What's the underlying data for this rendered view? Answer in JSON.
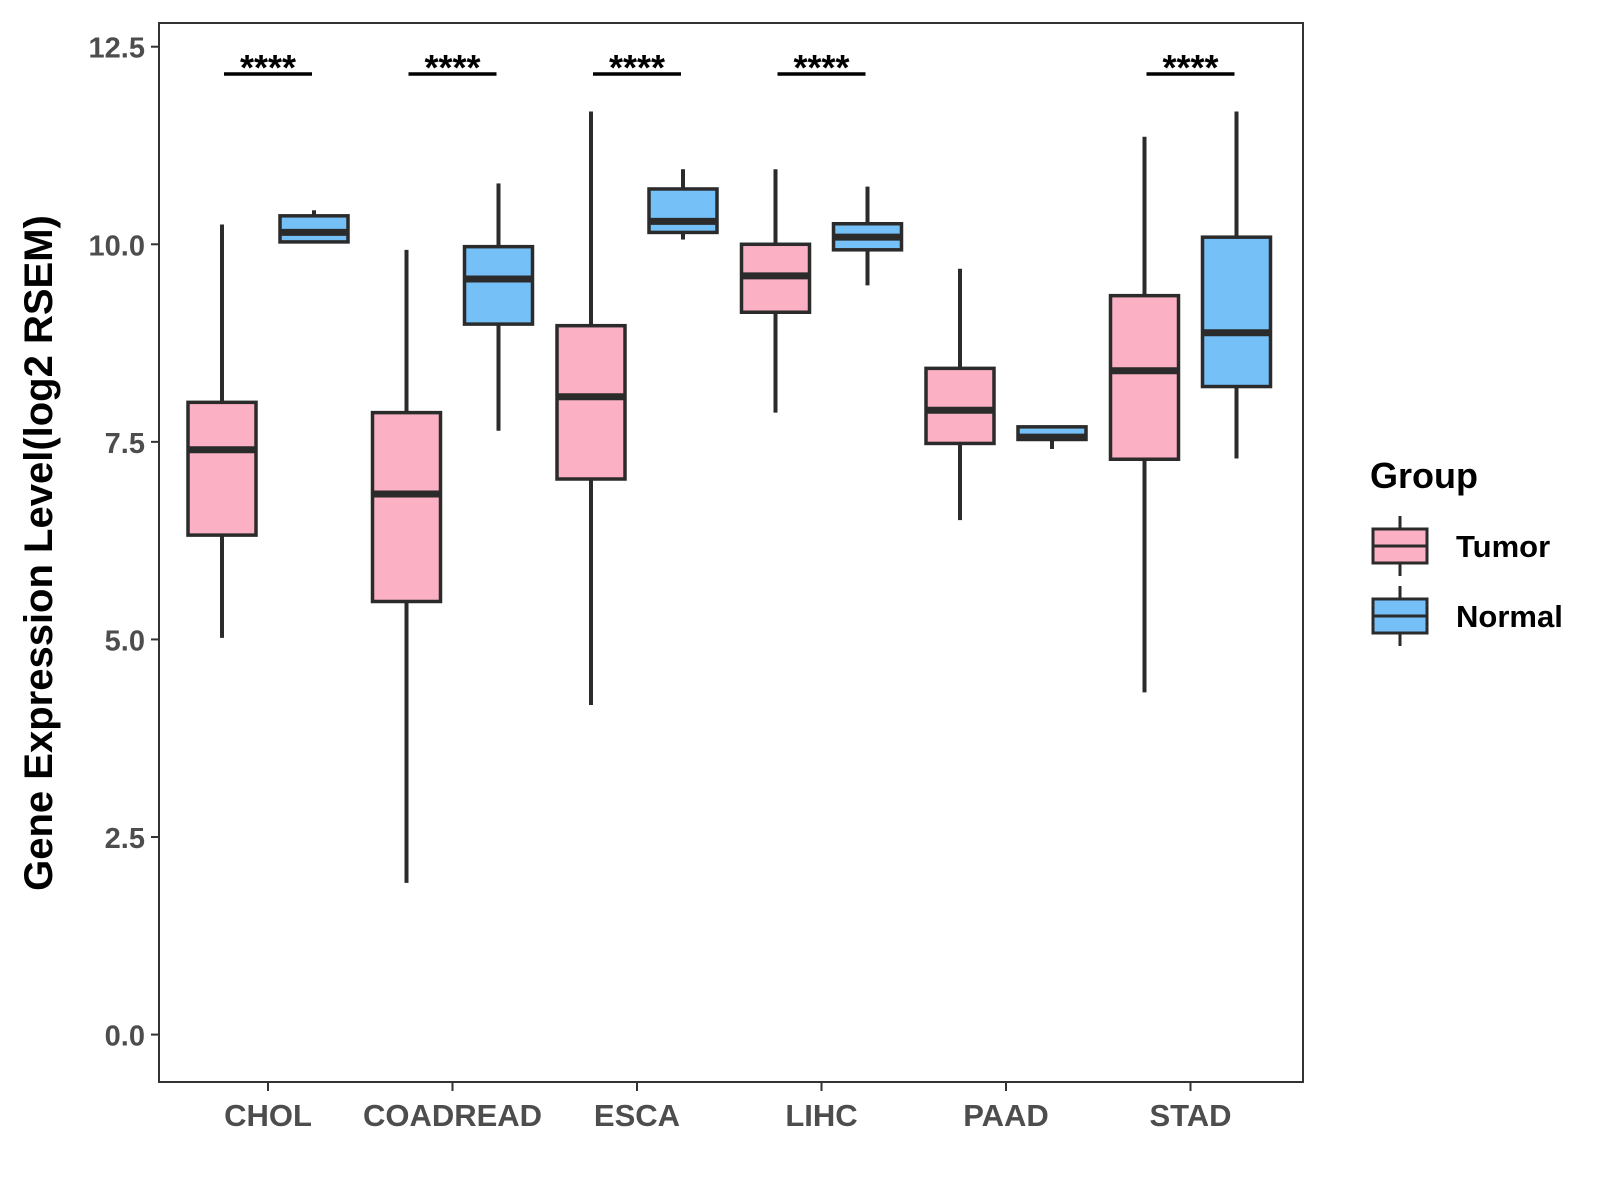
{
  "chart_data": {
    "type": "boxplot",
    "ylabel": "Gene Expression Level(log2 RSEM)",
    "xlabel": "",
    "ylim": [
      -0.6,
      12.8
    ],
    "yticks": [
      0.0,
      2.5,
      5.0,
      7.5,
      10.0,
      12.5
    ],
    "ytick_labels": [
      "0.0",
      "2.5",
      "5.0",
      "7.5",
      "10.0",
      "12.5"
    ],
    "categories": [
      "CHOL",
      "COADREAD",
      "ESCA",
      "LIHC",
      "PAAD",
      "STAD"
    ],
    "legend": {
      "title": "Group",
      "position": "right",
      "items": [
        {
          "name": "Tumor",
          "color": "#FBB1C3"
        },
        {
          "name": "Normal",
          "color": "#74C0F7"
        }
      ]
    },
    "series": [
      {
        "name": "Tumor",
        "color": "#FBB1C3",
        "boxes": [
          {
            "category": "CHOL",
            "whisker_low": 5.02,
            "q1": 6.32,
            "median": 7.4,
            "q3": 8.0,
            "whisker_high": 10.25
          },
          {
            "category": "COADREAD",
            "whisker_low": 1.92,
            "q1": 5.48,
            "median": 6.84,
            "q3": 7.87,
            "whisker_high": 9.93
          },
          {
            "category": "ESCA",
            "whisker_low": 4.17,
            "q1": 7.03,
            "median": 8.07,
            "q3": 8.97,
            "whisker_high": 11.68
          },
          {
            "category": "LIHC",
            "whisker_low": 7.87,
            "q1": 9.14,
            "median": 9.6,
            "q3": 10.0,
            "whisker_high": 10.95
          },
          {
            "category": "PAAD",
            "whisker_low": 6.51,
            "q1": 7.48,
            "median": 7.9,
            "q3": 8.43,
            "whisker_high": 9.69
          },
          {
            "category": "STAD",
            "whisker_low": 4.33,
            "q1": 7.28,
            "median": 8.4,
            "q3": 9.35,
            "whisker_high": 11.36
          }
        ]
      },
      {
        "name": "Normal",
        "color": "#74C0F7",
        "boxes": [
          {
            "category": "CHOL",
            "whisker_low": 10.02,
            "q1": 10.03,
            "median": 10.15,
            "q3": 10.36,
            "whisker_high": 10.43
          },
          {
            "category": "COADREAD",
            "whisker_low": 7.64,
            "q1": 8.99,
            "median": 9.56,
            "q3": 9.97,
            "whisker_high": 10.77
          },
          {
            "category": "ESCA",
            "whisker_low": 10.06,
            "q1": 10.15,
            "median": 10.29,
            "q3": 10.7,
            "whisker_high": 10.95
          },
          {
            "category": "LIHC",
            "whisker_low": 9.48,
            "q1": 9.93,
            "median": 10.09,
            "q3": 10.26,
            "whisker_high": 10.73
          },
          {
            "category": "PAAD",
            "whisker_low": 7.41,
            "q1": 7.53,
            "median": 7.56,
            "q3": 7.69,
            "whisker_high": 7.69
          },
          {
            "category": "STAD",
            "whisker_low": 7.29,
            "q1": 8.2,
            "median": 8.88,
            "q3": 10.09,
            "whisker_high": 11.68
          }
        ]
      }
    ],
    "significance": [
      {
        "category": "CHOL",
        "label": "****"
      },
      {
        "category": "COADREAD",
        "label": "****"
      },
      {
        "category": "ESCA",
        "label": "****"
      },
      {
        "category": "LIHC",
        "label": "****"
      },
      {
        "category": "STAD",
        "label": "****"
      }
    ]
  }
}
